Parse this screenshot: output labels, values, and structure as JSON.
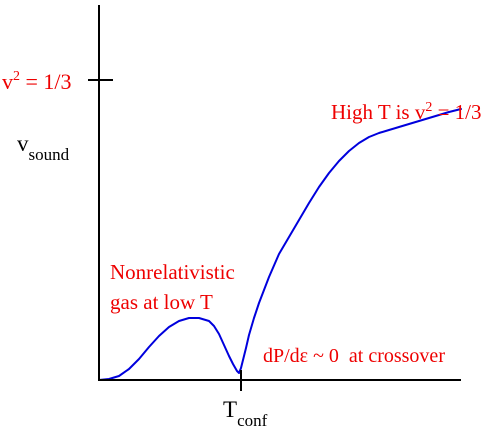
{
  "chart_data": {
    "type": "line",
    "title": "",
    "xlabel": "",
    "ylabel": "",
    "y_axis_label": {
      "main": "v",
      "sub": "sound"
    },
    "y_tick": {
      "main": "v",
      "sup": "2",
      "rest": " = 1/3"
    },
    "x_tick": {
      "main": "T",
      "sub": "conf"
    },
    "grid": false,
    "legend": "none",
    "annotations": {
      "high_t": {
        "main": "High T is v",
        "sup": "2",
        "rest": " = 1/3"
      },
      "nonrel_line1": "Nonrelativistic",
      "nonrel_line2": "gas at low T",
      "crossover": "dP/dε ~ 0  at crossover"
    },
    "xlim": [
      0,
      362
    ],
    "ylim": [
      0,
      300
    ],
    "y_tick_value": 300,
    "x_tick_value": 142,
    "series": [
      {
        "color": "#0000dd",
        "x": [
          0,
          10,
          20,
          30,
          40,
          50,
          60,
          70,
          80,
          90,
          100,
          110,
          115,
          120,
          125,
          130,
          134,
          138,
          140,
          142,
          144,
          147,
          150,
          155,
          160,
          165,
          170,
          180,
          190,
          200,
          210,
          220,
          230,
          240,
          250,
          260,
          270,
          280,
          290,
          300,
          310,
          320,
          330,
          340,
          350,
          362
        ],
        "y": [
          0,
          1,
          4,
          11,
          21,
          33,
          44,
          53,
          59,
          62,
          62,
          59,
          54,
          46,
          35,
          24,
          16,
          9,
          7,
          12,
          20,
          32,
          45,
          62,
          77,
          90,
          103,
          126,
          143,
          160,
          177,
          193,
          207,
          219,
          229,
          237,
          243,
          247,
          250,
          253,
          256,
          259,
          262,
          265,
          268,
          271
        ]
      }
    ]
  },
  "colors": {
    "annotation": "#ee0000",
    "curve": "#0000dd",
    "axis": "#000000"
  }
}
